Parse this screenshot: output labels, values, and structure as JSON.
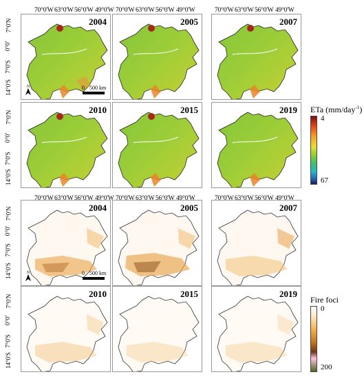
{
  "longitude_labels": [
    "70°0'W",
    "63°0'W",
    "56°0'W",
    "49°0'W"
  ],
  "latitude_labels": [
    "7°0'N",
    "0°0'",
    "7°0'S",
    "14°0'S"
  ],
  "eta_section": {
    "years": [
      "2004",
      "2005",
      "2007",
      "2010",
      "2015",
      "2019"
    ],
    "legend": {
      "title": "ETa (mm/day",
      "superscript": "-1",
      "close": ")",
      "max_label": "4",
      "min_label": "67",
      "colors": [
        "#7b1113",
        "#e34a1b",
        "#f7a22a",
        "#e6df2e",
        "#8bcb37",
        "#3fbf6a",
        "#2bb5c8",
        "#2a66b0",
        "#141f5e"
      ]
    }
  },
  "fire_section": {
    "years": [
      "2004",
      "2005",
      "2007",
      "2010",
      "2015",
      "2019"
    ],
    "legend": {
      "title": "Fire foci",
      "top_label": "0",
      "bottom_label": "200",
      "colors": [
        "#ffffff",
        "#ffe6c8",
        "#f6b24e",
        "#c2751f",
        "#6b3a1a",
        "#ffc0e0",
        "#4b6a1e"
      ]
    }
  },
  "scale": {
    "zero": "0",
    "distance": "500 km"
  },
  "north_arrow": "N"
}
